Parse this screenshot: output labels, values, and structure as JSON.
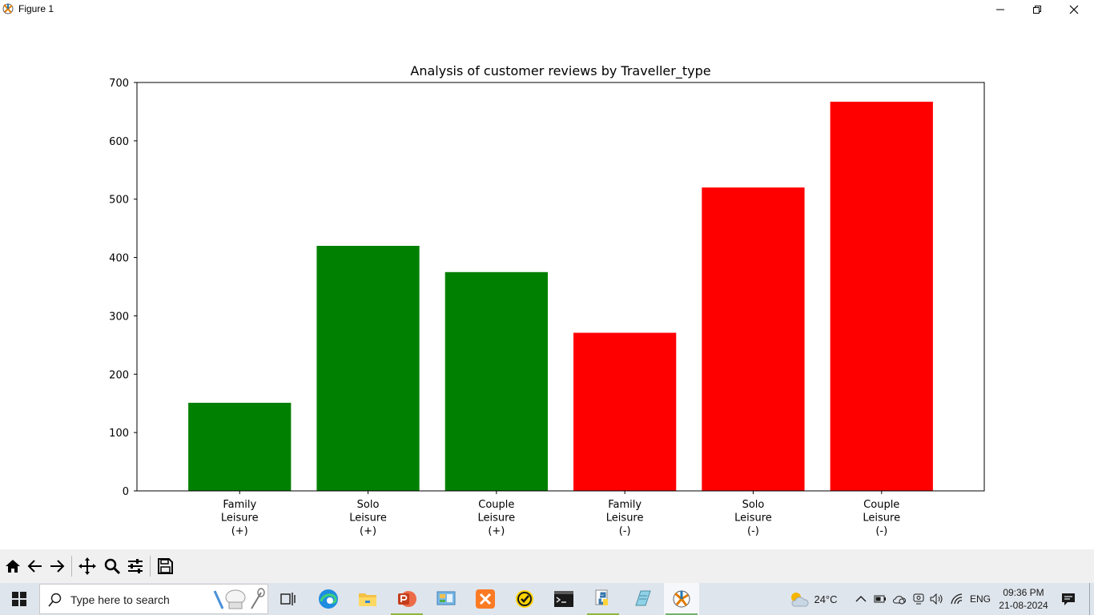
{
  "window": {
    "title": "Figure 1",
    "minimize_icon": "minimize-icon",
    "restore_icon": "restore-icon",
    "close_icon": "close-icon"
  },
  "chart_data": {
    "type": "bar",
    "title": "Analysis of customer reviews by Traveller_type",
    "xlabel": "",
    "ylabel": "",
    "categories": [
      "Family\nLeisure\n(+)",
      "Solo\nLeisure\n(+)",
      "Couple\nLeisure\n(+)",
      "Family\nLeisure\n(-)",
      "Solo\nLeisure\n(-)",
      "Couple\nLeisure\n(-)"
    ],
    "values": [
      151,
      420,
      375,
      271,
      520,
      667
    ],
    "colors": [
      "#008000",
      "#008000",
      "#008000",
      "#ff0000",
      "#ff0000",
      "#ff0000"
    ],
    "ylim": [
      0,
      700
    ],
    "yticks": [
      0,
      100,
      200,
      300,
      400,
      500,
      600,
      700
    ],
    "grid": false,
    "legend": "none"
  },
  "toolbar": {
    "items": [
      "home-icon",
      "back-icon",
      "forward-icon",
      "pan-icon",
      "zoom-icon",
      "configure-subplots-icon",
      "save-icon"
    ]
  },
  "taskbar": {
    "search_placeholder": "Type here to search",
    "weather": "24°C",
    "language": "ENG",
    "time": "09:36 PM",
    "date": "21-08-2024",
    "apps": [
      "task-view-icon",
      "edge-icon",
      "file-explorer-icon",
      "powerpoint-icon",
      "control-panel-icon",
      "xampp-icon",
      "norton-icon",
      "terminal-icon",
      "python-icon",
      "notepad-icon",
      "matplotlib-figure-icon"
    ]
  },
  "colors": {
    "positive": "#008000",
    "negative": "#ff0000",
    "taskbar": "#dfe5ec",
    "toolbar": "#f0f0f0"
  }
}
